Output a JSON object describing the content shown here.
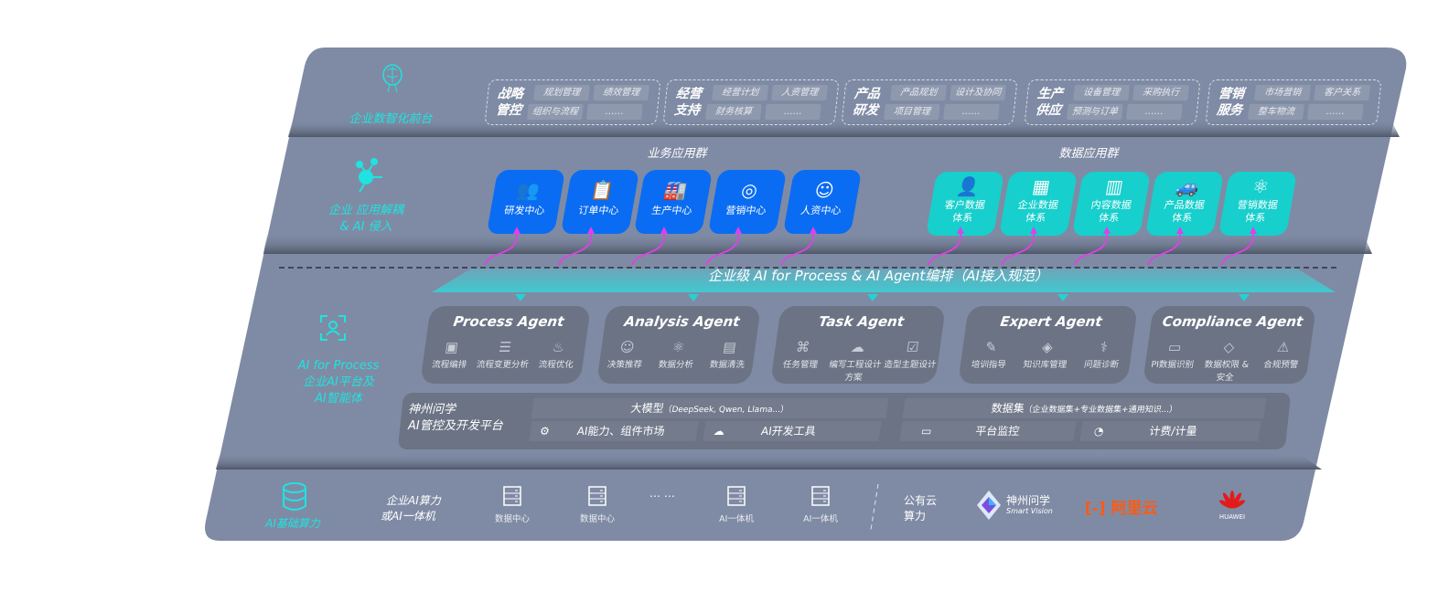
{
  "colors": {
    "panel": "#7f8ba4",
    "card": "#6b7384",
    "business_tile": "#0a6cf2",
    "data_tile": "#17cfcc",
    "accent_cyan": "#1fe3e0",
    "connector": "#e040e8"
  },
  "layers": {
    "front": {
      "label": "企业数智化前台",
      "icon": "brain-icon",
      "groups": [
        {
          "title": "战略管控",
          "items": [
            "规划管理",
            "绩效管理",
            "组织与流程",
            "……"
          ]
        },
        {
          "title": "经营支持",
          "items": [
            "经营计划",
            "人资管理",
            "财务核算",
            "……"
          ]
        },
        {
          "title": "产品研发",
          "items": [
            "产品规划",
            "设计及协同",
            "项目管理",
            "……"
          ]
        },
        {
          "title": "生产供应",
          "items": [
            "设备管理",
            "采购执行",
            "预测与订单",
            "……"
          ]
        },
        {
          "title": "营销服务",
          "items": [
            "市场营销",
            "客户关系",
            "整车物流",
            "……"
          ]
        }
      ]
    },
    "apps": {
      "label_line1": "企业 应用解耦",
      "label_line2": "& AI 侵入",
      "icon": "molecule-icon",
      "business_title": "业务应用群",
      "business": [
        {
          "label": "研发中心",
          "icon": "users-icon"
        },
        {
          "label": "订单中心",
          "icon": "clipboard-icon"
        },
        {
          "label": "生产中心",
          "icon": "factory-icon"
        },
        {
          "label": "营销中心",
          "icon": "target-icon"
        },
        {
          "label": "人资中心",
          "icon": "person-icon"
        }
      ],
      "data_title": "数据应用群",
      "data": [
        {
          "line1": "客户数据",
          "line2": "体系",
          "icon": "user-icon"
        },
        {
          "line1": "企业数据",
          "line2": "体系",
          "icon": "building-icon"
        },
        {
          "line1": "内容数据",
          "line2": "体系",
          "icon": "books-icon"
        },
        {
          "line1": "产品数据",
          "line2": "体系",
          "icon": "car-icon"
        },
        {
          "line1": "营销数据",
          "line2": "体系",
          "icon": "atom-icon"
        }
      ]
    },
    "banner": "企业级 AI for Process & AI Agent编排（AI接入规范）",
    "ai": {
      "label_line1": "AI for Process",
      "label_line2": "企业AI平台及",
      "label_line3": "AI智能体",
      "icon": "face-scan-icon",
      "agents": [
        {
          "name": "Process Agent",
          "items": [
            {
              "label": "流程编排",
              "icon": "chart-icon"
            },
            {
              "label": "流程变更分析",
              "icon": "list-icon"
            },
            {
              "label": "流程优化",
              "icon": "tune-icon"
            }
          ]
        },
        {
          "name": "Analysis Agent",
          "items": [
            {
              "label": "决策推荐",
              "icon": "head-icon"
            },
            {
              "label": "数据分析",
              "icon": "atom-icon"
            },
            {
              "label": "数据清洗",
              "icon": "doc-icon"
            }
          ]
        },
        {
          "name": "Task Agent",
          "items": [
            {
              "label": "任务管理",
              "icon": "network-icon"
            },
            {
              "label": "编写工程设计方案",
              "icon": "cloud-icon"
            },
            {
              "label": "造型主题设计",
              "icon": "checklist-icon"
            }
          ]
        },
        {
          "name": "Expert Agent",
          "items": [
            {
              "label": "培训指导",
              "icon": "pen-icon"
            },
            {
              "label": "知识库管理",
              "icon": "layers-icon"
            },
            {
              "label": "问题诊断",
              "icon": "diagnose-icon"
            }
          ]
        },
        {
          "name": "Compliance Agent",
          "items": [
            {
              "label": "PI数据识别",
              "icon": "id-icon"
            },
            {
              "label": "数据权限 & 安全",
              "icon": "shield-icon"
            },
            {
              "label": "合规预警",
              "icon": "alert-icon"
            }
          ]
        }
      ],
      "platform": {
        "title_line1": "神州问学",
        "title_line2": "AI管控及开发平台",
        "model": "大模型",
        "model_note": "（DeepSeek, Qwen, Llama...）",
        "dataset": "数据集",
        "dataset_note": "（企业数据集+专业数据集+通用知识...）",
        "cells": [
          "AI能力、组件市场",
          "AI开发工具",
          "平台监控",
          "计费/计量"
        ]
      }
    },
    "infra": {
      "label": "AI基础算力",
      "icon": "database-icon",
      "onprem_line1": "企业AI算力",
      "onprem_line2": "或AI一体机",
      "servers": [
        "数据中心",
        "数据中心",
        "AI一体机",
        "AI一体机"
      ],
      "ellipsis": "… …",
      "cloud_line1": "公有云",
      "cloud_line2": "算力",
      "vendors": {
        "smartvision_cn": "神州问学",
        "smartvision_en": "Smart Vision",
        "aliyun": "阿里云",
        "huawei": "HUAWEI"
      }
    }
  }
}
